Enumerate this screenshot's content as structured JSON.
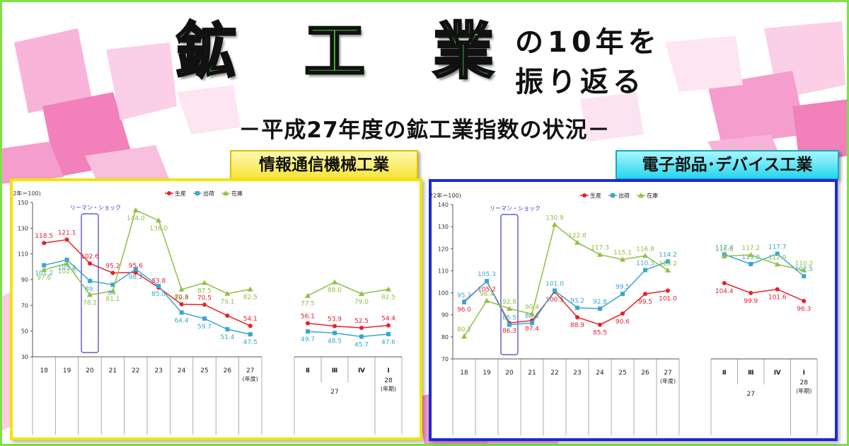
{
  "header": {
    "title_chars": [
      "鉱",
      "工",
      "業"
    ],
    "title_line1": "の10年を",
    "title_line2": "振り返る",
    "subtitle": "－平成27年度の鉱工業指数の状況－"
  },
  "colors": {
    "production": "#e8202a",
    "shipment": "#3aa6cf",
    "inventory": "#8fbf45",
    "title_green": "#4ee43a",
    "left_frame": "#f2e40a",
    "right_frame": "#1c2ad6",
    "shock_box": "#3d3dc8"
  },
  "chart_data": [
    {
      "type": "line",
      "title": "情報通信機械工業",
      "unit_label": "(22年＝100)",
      "ylim": [
        30,
        150
      ],
      "yticks": [
        30,
        50,
        70,
        90,
        110,
        130,
        150
      ],
      "annotation": "リーマン・ショック",
      "annual_categories": [
        "18",
        "19",
        "20",
        "21",
        "22",
        "23",
        "24",
        "25",
        "26",
        "27"
      ],
      "annual_unit": "(年度)",
      "quarter_categories": [
        "Ⅱ",
        "Ⅲ",
        "Ⅳ",
        "Ⅰ"
      ],
      "quarter_year_labels": [
        "27",
        "28"
      ],
      "quarter_unit": "(年期)",
      "legend": [
        "生産",
        "出荷",
        "在庫"
      ],
      "series": [
        {
          "name": "生産",
          "annual": [
            118.5,
            121.1,
            102.6,
            95.2,
            95.6,
            83.8,
            70.9,
            70.5,
            62.0,
            54.1
          ],
          "quarter": [
            56.1,
            53.9,
            52.5,
            54.4
          ],
          "labels_annual": [
            "118.5",
            "121.1",
            "102.6",
            "95.2",
            "95.6",
            "83.8",
            "70.9",
            "70.5",
            "",
            "54.1"
          ],
          "labels_quarter": [
            "56.1",
            "53.9",
            "52.5",
            "54.4"
          ]
        },
        {
          "name": "出荷",
          "annual": [
            101.2,
            105.4,
            89.0,
            86.0,
            98.2,
            85.0,
            64.4,
            59.7,
            51.4,
            47.5
          ],
          "quarter": [
            49.7,
            48.5,
            45.7,
            47.6
          ],
          "labels_annual": [
            "101.2",
            "105.4",
            "89.",
            "86.",
            "98.2",
            "85.0",
            "64.4",
            "59.7",
            "51.4",
            "47.5"
          ],
          "labels_quarter": [
            "49.7",
            "48.5",
            "45.7",
            "47.6"
          ]
        },
        {
          "name": "在庫",
          "annual": [
            97.6,
            102.6,
            78.2,
            81.1,
            144.0,
            136.0,
            82.4,
            87.5,
            79.1,
            82.5
          ],
          "quarter": [
            77.5,
            88.0,
            79.0,
            82.5
          ],
          "labels_annual": [
            "97.6",
            "102.6",
            "78.2",
            "81.1",
            "144.0",
            "136.0",
            "82.4",
            "87.5",
            "79.1",
            "82.5"
          ],
          "labels_quarter": [
            "77.5",
            "88.0",
            "79.0",
            "82.5"
          ]
        }
      ]
    },
    {
      "type": "line",
      "title": "電子部品･デバイス工業",
      "unit_label": "(22年＝100)",
      "ylim": [
        70,
        140
      ],
      "yticks": [
        70,
        80,
        90,
        100,
        110,
        120,
        130,
        140
      ],
      "annotation": "リーマン・ショック",
      "annual_categories": [
        "18",
        "19",
        "20",
        "21",
        "22",
        "23",
        "24",
        "25",
        "26",
        "27"
      ],
      "annual_unit": "(年度)",
      "quarter_categories": [
        "Ⅱ",
        "Ⅲ",
        "Ⅳ",
        "Ⅰ"
      ],
      "quarter_year_labels": [
        "27",
        "28"
      ],
      "quarter_unit": "(年期)",
      "legend": [
        "生産",
        "出荷",
        "在庫"
      ],
      "series": [
        {
          "name": "生産",
          "annual": [
            96.0,
            105.2,
            86.3,
            87.4,
            100.5,
            88.9,
            85.5,
            90.6,
            99.5,
            101.0
          ],
          "quarter": [
            104.4,
            99.9,
            101.6,
            96.3
          ],
          "labels_annual": [
            "96.0",
            "105.2",
            "86.3",
            "87.4",
            "100.5",
            "88.9",
            "85.5",
            "90.6",
            "99.5",
            "101.0"
          ],
          "labels_quarter": [
            "104.4",
            "99.9",
            "101.6",
            "96.3"
          ]
        },
        {
          "name": "出荷",
          "annual": [
            95.7,
            105.3,
            85.5,
            86.3,
            101.0,
            93.2,
            92.8,
            99.5,
            110.3,
            114.2
          ],
          "quarter": [
            117.4,
            113.0,
            117.7,
            107.5
          ],
          "labels_annual": [
            "95.7",
            "105.3",
            "85.5",
            "86.3",
            "101.0",
            "93.2",
            "92.8",
            "99.5",
            "110.3",
            "114.2"
          ],
          "labels_quarter": [
            "117.4",
            "113.0",
            "117.7",
            "107.5"
          ]
        },
        {
          "name": "在庫",
          "annual": [
            80.2,
            96.4,
            92.8,
            90.4,
            130.9,
            122.8,
            117.3,
            115.1,
            116.8,
            110.2
          ],
          "quarter": [
            116.6,
            117.2,
            112.9,
            110.2
          ],
          "labels_annual": [
            "80.2",
            "96.4",
            "92.8",
            "90.4",
            "130.9",
            "122.8",
            "117.3",
            "115.1",
            "116.8",
            "110.2"
          ],
          "labels_quarter": [
            "116.6",
            "117.2",
            "112.9",
            "110.2"
          ]
        }
      ]
    }
  ]
}
